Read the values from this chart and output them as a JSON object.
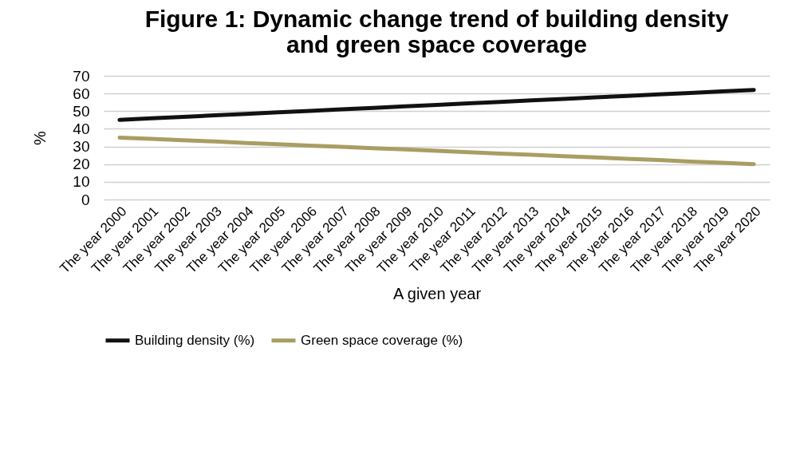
{
  "chart_data": {
    "type": "line",
    "title": [
      "Figure 1: Dynamic change trend of building density",
      "and green space coverage"
    ],
    "xlabel": "A given year",
    "ylabel": "%",
    "categories": [
      "The year 2000",
      "The year 2001",
      "The year 2002",
      "The year 2003",
      "The year 2004",
      "The year 2005",
      "The year 2006",
      "The year 2007",
      "The year 2008",
      "The year 2009",
      "The year 2010",
      "The year 2011",
      "The year 2012",
      "The year 2013",
      "The year 2014",
      "The year 2015",
      "The year 2016",
      "The year 2017",
      "The year 2018",
      "The year 2019",
      "The year 2020"
    ],
    "series": [
      {
        "name": "Building density (%)",
        "color": "#111111",
        "values": [
          45,
          45.9,
          46.7,
          47.6,
          48.4,
          49.3,
          50.1,
          51.0,
          51.8,
          52.7,
          53.5,
          54.4,
          55.2,
          56.1,
          56.9,
          57.8,
          58.6,
          59.5,
          60.3,
          61.2,
          62
        ]
      },
      {
        "name": "Green space coverage (%)",
        "color": "#a89e63",
        "values": [
          35,
          34.3,
          33.5,
          32.8,
          32,
          31.3,
          30.5,
          29.8,
          29,
          28.3,
          27.5,
          26.8,
          26,
          25.3,
          24.5,
          23.8,
          23,
          22.3,
          21.5,
          20.8,
          20
        ]
      }
    ],
    "ylim": [
      0,
      70
    ],
    "yticks": [
      0,
      10,
      20,
      30,
      40,
      50,
      60,
      70
    ],
    "grid": "y",
    "legend": "bottom",
    "marker": "none",
    "line_style": "solid"
  }
}
